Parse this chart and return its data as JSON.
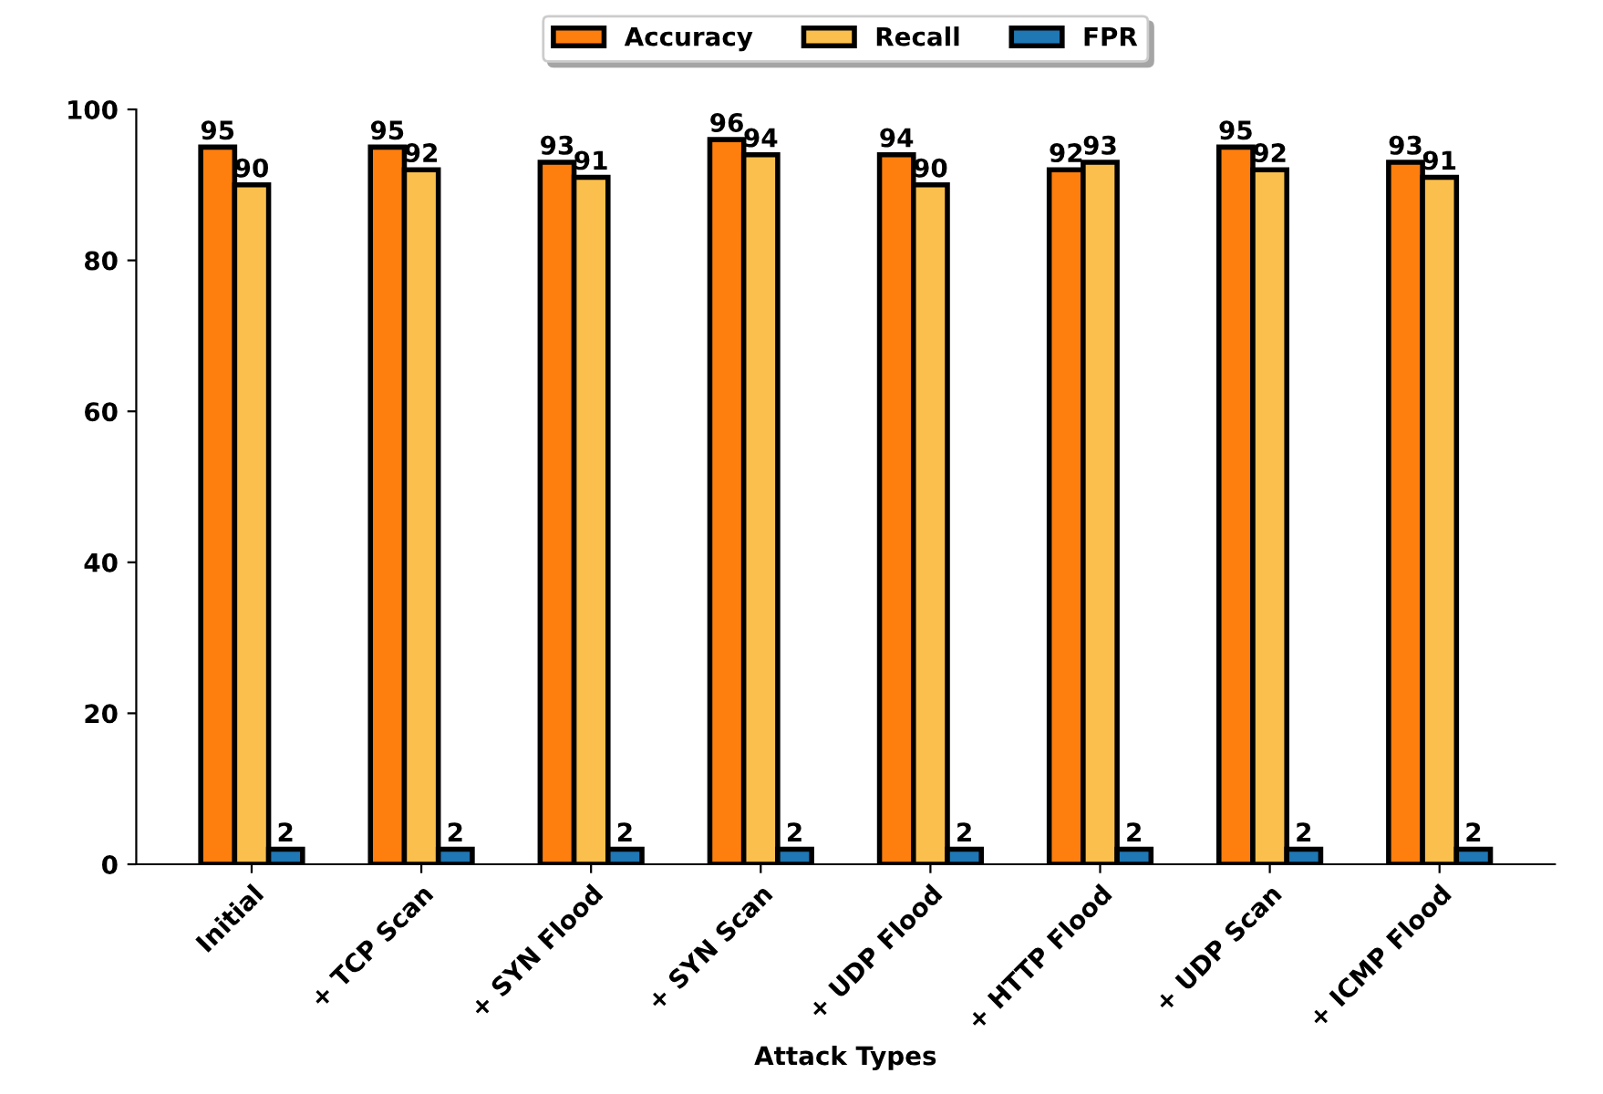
{
  "chart_data": {
    "type": "bar",
    "xlabel": "Attack Types",
    "categories": [
      "Initial",
      "+ TCP Scan",
      "+ SYN Flood",
      "+ SYN Scan",
      "+ UDP Flood",
      "+ HTTP Flood",
      "+ UDP Scan",
      "+ ICMP Flood"
    ],
    "series": [
      {
        "name": "Accuracy",
        "color": "#ff7f0e",
        "values": [
          95,
          95,
          93,
          96,
          94,
          92,
          95,
          93
        ]
      },
      {
        "name": "Recall",
        "color": "#fbbf4d",
        "values": [
          90,
          92,
          91,
          94,
          90,
          93,
          92,
          91
        ]
      },
      {
        "name": "FPR",
        "color": "#1f77b4",
        "values": [
          2,
          2,
          2,
          2,
          2,
          2,
          2,
          2
        ]
      }
    ],
    "ylim": [
      0,
      100
    ],
    "yticks": [
      0,
      20,
      40,
      60,
      80,
      100
    ],
    "data_labels": true,
    "legend": "top",
    "grid": false
  }
}
